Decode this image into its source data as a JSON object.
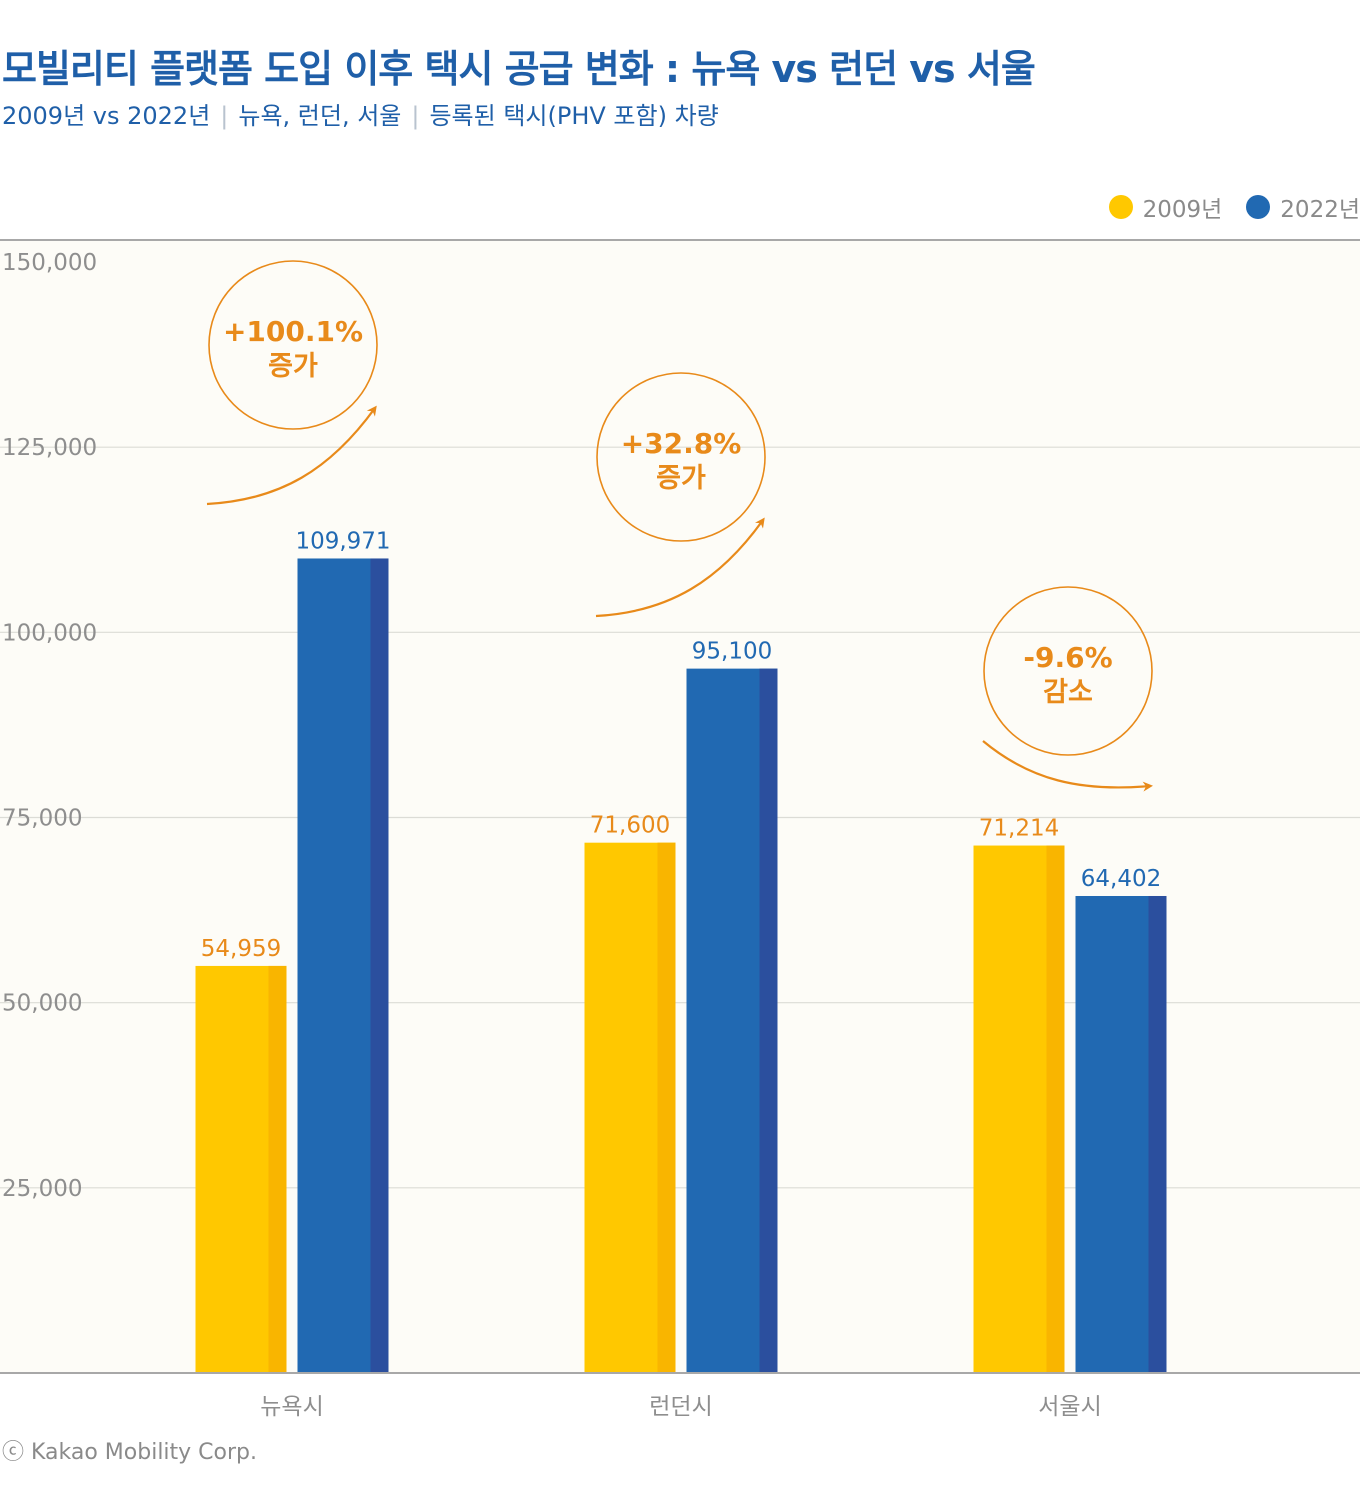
{
  "title": "모빌리티 플랫폼 도입 이후 택시 공급 변화 : 뉴욕 vs 런던 vs 서울",
  "subtitle": {
    "part1": "2009년 vs 2022년",
    "part2": "뉴욕, 런던, 서울",
    "part3": "등록된 택시(PHV 포함) 차량",
    "separator": "|"
  },
  "footer": "ⓒ Kakao Mobility Corp.",
  "colors": {
    "y2009": "#ffc800",
    "y2009_shade": "#f9b500",
    "y2022": "#2169b2",
    "y2022_shade": "#2b4f9e",
    "annotation": "#e88a1a",
    "title": "#1f5fa8",
    "plot_bg": "#fdfcf7"
  },
  "chart_data": {
    "type": "bar",
    "title": "모빌리티 플랫폼 도입 이후 택시 공급 변화 : 뉴욕 vs 런던 vs 서울",
    "categories": [
      "뉴욕시",
      "런던시",
      "서울시"
    ],
    "series": [
      {
        "name": "2009년",
        "values": [
          54959,
          71600,
          71214
        ],
        "labels": [
          "54,959",
          "71,600",
          "71,214"
        ]
      },
      {
        "name": "2022년",
        "values": [
          109971,
          95100,
          64402
        ],
        "labels": [
          "109,971",
          "95,100",
          "64,402"
        ]
      }
    ],
    "ylim": [
      0,
      150000
    ],
    "yticks": [
      0,
      25000,
      50000,
      75000,
      100000,
      125000,
      150000
    ],
    "yticklabels": [
      "",
      "25,000",
      "50,000",
      "75,000",
      "100,000",
      "125,000",
      "150,000"
    ],
    "grid": true,
    "legend": "top-right",
    "annotations": [
      {
        "category": "뉴욕시",
        "change": "+100.1%",
        "label": "증가",
        "direction": "up"
      },
      {
        "category": "런던시",
        "change": "+32.8%",
        "label": "증가",
        "direction": "up"
      },
      {
        "category": "서울시",
        "change": "-9.6%",
        "label": "감소",
        "direction": "down"
      }
    ]
  }
}
